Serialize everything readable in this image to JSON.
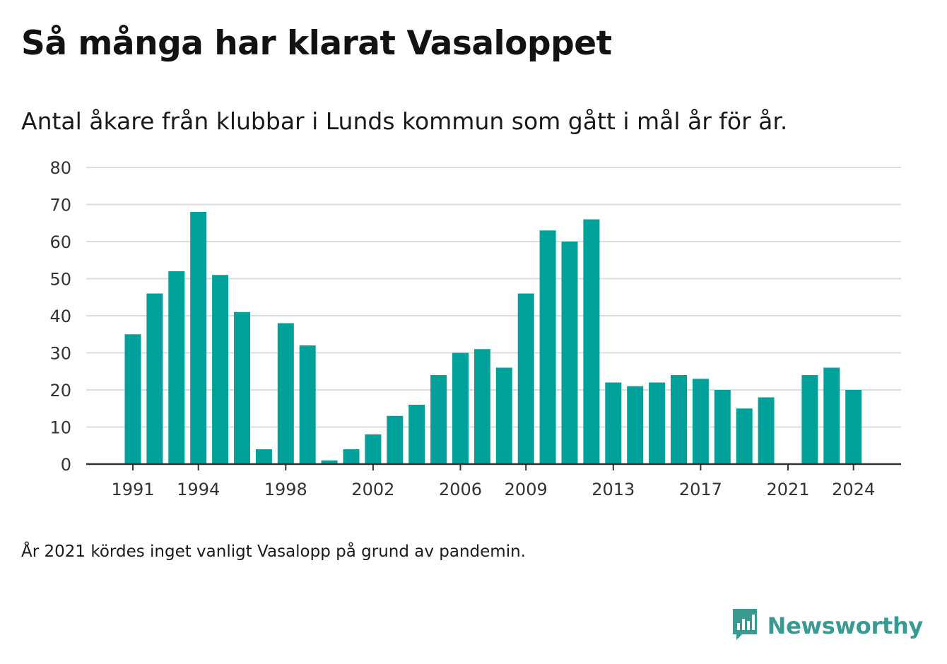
{
  "title": "Så många har klarat Vasaloppet",
  "subtitle": "Antal åkare från klubbar i Lunds kommun som gått i mål år för år.",
  "footnote": "År 2021 kördes inget vanligt Vasalopp på grund av pandemin.",
  "brand": {
    "name": "Newsworthy",
    "logo_icon": "newsworthy-logo-icon",
    "color": "#3a9a92"
  },
  "colors": {
    "bar": "#00a19a",
    "grid": "#dcdcdc",
    "axis": "#333333"
  },
  "chart_data": {
    "type": "bar",
    "categories": [
      1991,
      1992,
      1993,
      1994,
      1995,
      1996,
      1997,
      1998,
      1999,
      2000,
      2001,
      2002,
      2003,
      2004,
      2005,
      2006,
      2007,
      2008,
      2009,
      2010,
      2011,
      2012,
      2013,
      2014,
      2015,
      2016,
      2017,
      2018,
      2019,
      2020,
      2021,
      2022,
      2023,
      2024
    ],
    "values": [
      35,
      46,
      52,
      68,
      51,
      41,
      4,
      38,
      32,
      1,
      4,
      8,
      13,
      16,
      24,
      30,
      31,
      26,
      46,
      63,
      60,
      66,
      22,
      21,
      22,
      24,
      23,
      20,
      15,
      18,
      null,
      24,
      26,
      20
    ],
    "x_tick_labels": [
      "1991",
      "1994",
      "1998",
      "2002",
      "2006",
      "2009",
      "2013",
      "2017",
      "2021",
      "2024"
    ],
    "y_ticks": [
      0,
      10,
      20,
      30,
      40,
      50,
      60,
      70,
      80
    ],
    "ylim": [
      0,
      80
    ],
    "grid": true
  }
}
